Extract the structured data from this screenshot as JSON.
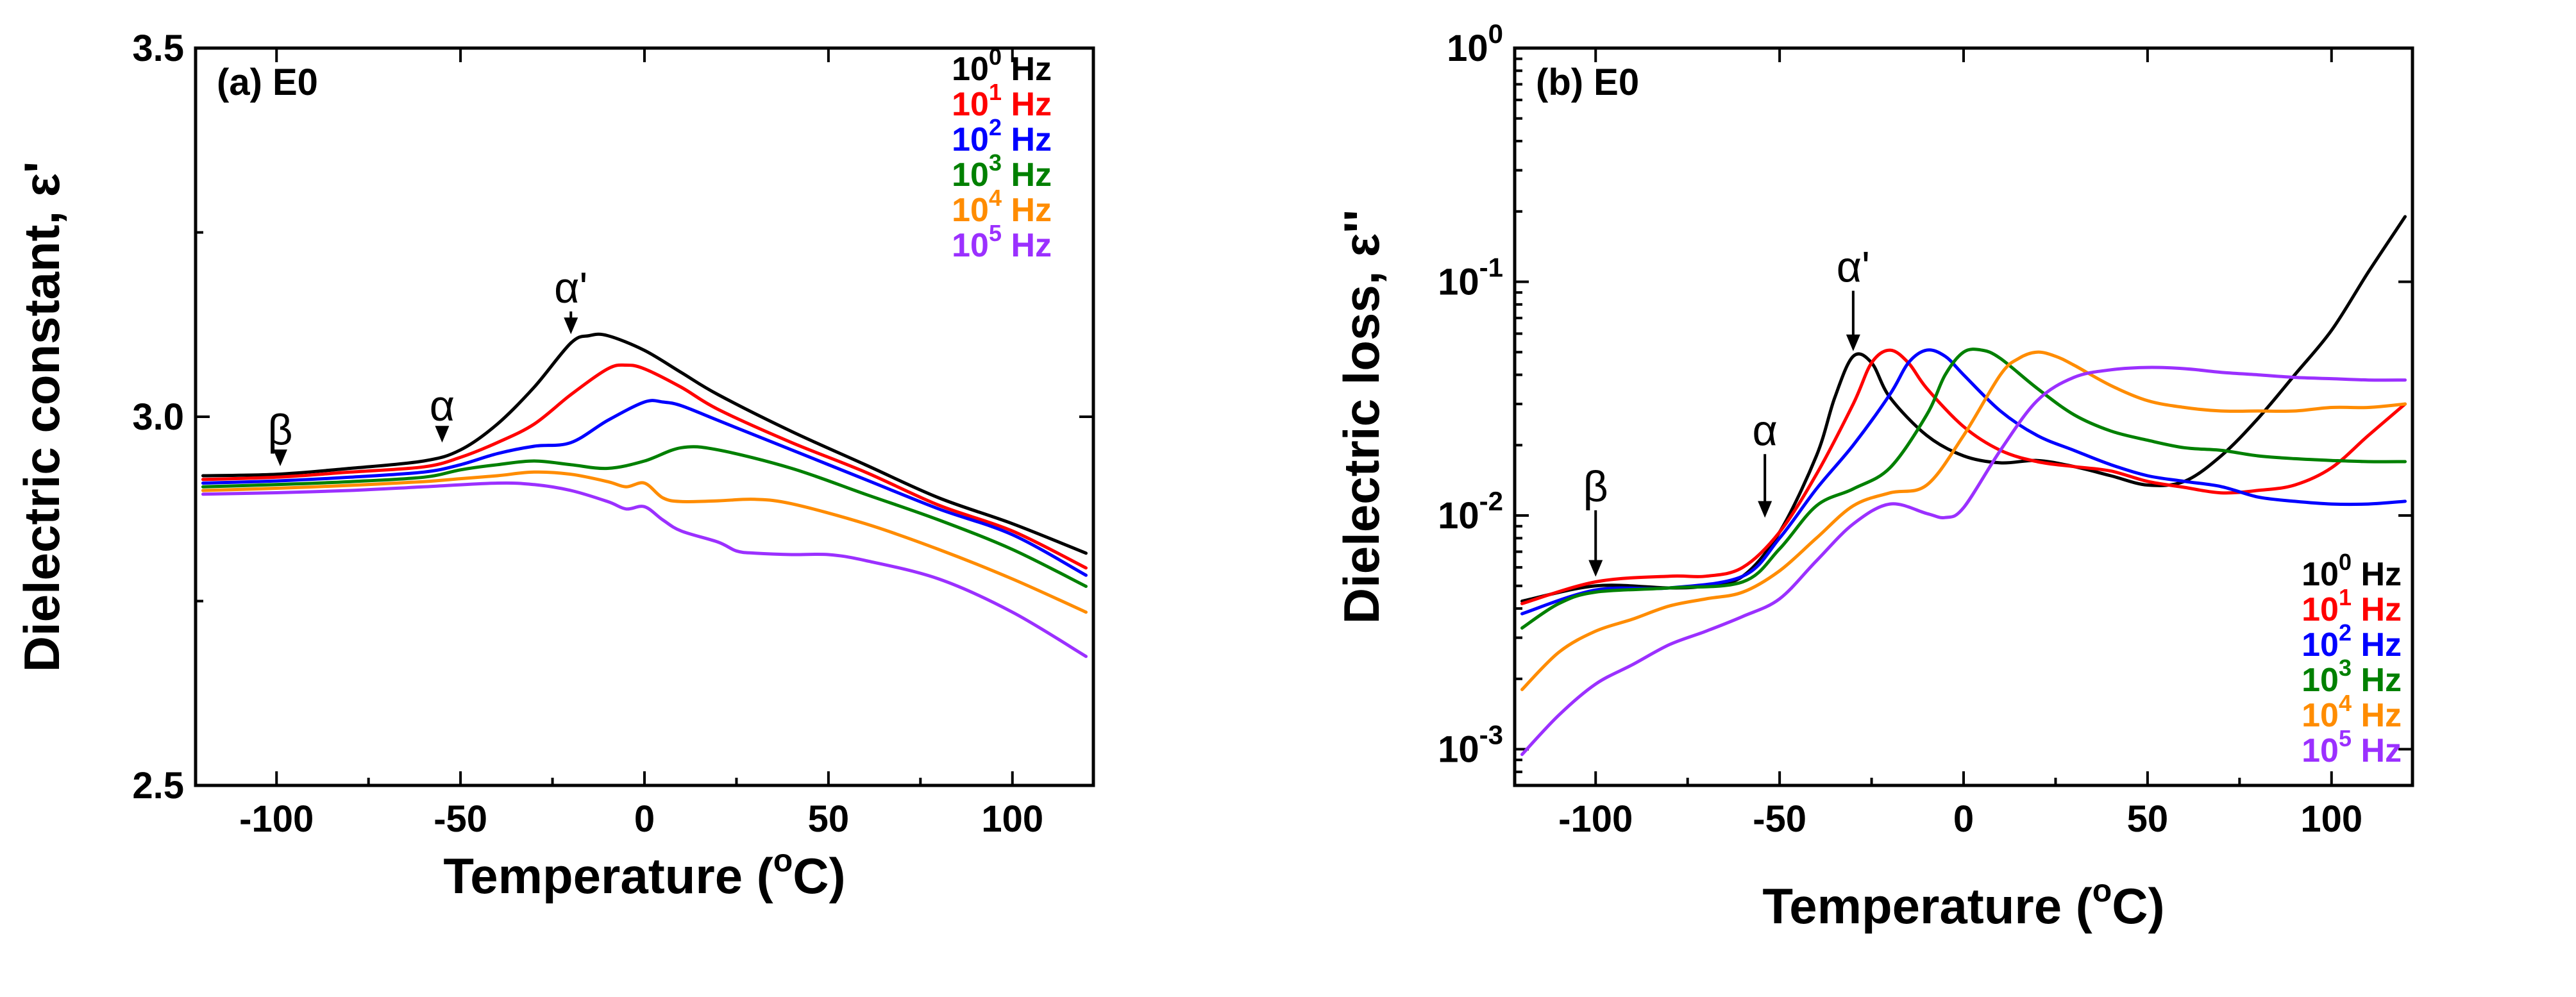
{
  "chart_data": [
    {
      "type": "line",
      "panel_label": "(a) E0",
      "xlabel": "Temperature (",
      "xlabel_sup": "o",
      "xlabel_tail": "C)",
      "ylabel": "Dielectric constant, ε'",
      "xlim": [
        -122,
        122
      ],
      "ylim": [
        2.5,
        3.5
      ],
      "yscale": "linear",
      "xticks": [
        -100,
        -50,
        0,
        50,
        100
      ],
      "xtick_labels": [
        "-100",
        "-50",
        "0",
        "50",
        "100"
      ],
      "yticks": [
        2.5,
        3.0,
        3.5
      ],
      "ytick_labels": [
        "2.5",
        "3.0",
        "3.5"
      ],
      "legend_position": "top-right",
      "annotations": [
        {
          "text": "β",
          "x": -99,
          "y": 2.926,
          "label_y": 2.962
        },
        {
          "text": "α",
          "x": -55,
          "y": 2.958,
          "label_y": 2.995
        },
        {
          "text": "α'",
          "x": -20,
          "y": 3.105,
          "label_y": 3.155
        }
      ],
      "series": [
        {
          "name_base": "10",
          "name_exp": "0",
          "name_unit": " Hz",
          "color": "#000000",
          "x": [
            -120,
            -100,
            -80,
            -60,
            -50,
            -40,
            -30,
            -20,
            -15,
            -10,
            0,
            10,
            20,
            40,
            60,
            80,
            100,
            120
          ],
          "y": [
            2.92,
            2.922,
            2.93,
            2.94,
            2.955,
            2.99,
            3.04,
            3.1,
            3.11,
            3.11,
            3.09,
            3.06,
            3.03,
            2.98,
            2.935,
            2.89,
            2.855,
            2.815
          ]
        },
        {
          "name_base": "10",
          "name_exp": "1",
          "name_unit": " Hz",
          "color": "#ff0000",
          "x": [
            -120,
            -100,
            -80,
            -60,
            -50,
            -40,
            -30,
            -20,
            -10,
            -5,
            0,
            10,
            20,
            40,
            60,
            80,
            100,
            120
          ],
          "y": [
            2.915,
            2.918,
            2.925,
            2.932,
            2.945,
            2.965,
            2.99,
            3.03,
            3.065,
            3.07,
            3.065,
            3.04,
            3.01,
            2.965,
            2.925,
            2.88,
            2.845,
            2.795
          ]
        },
        {
          "name_base": "10",
          "name_exp": "2",
          "name_unit": " Hz",
          "color": "#0000ff",
          "x": [
            -120,
            -100,
            -80,
            -60,
            -50,
            -40,
            -30,
            -20,
            -10,
            0,
            5,
            10,
            20,
            40,
            60,
            80,
            100,
            120
          ],
          "y": [
            2.91,
            2.913,
            2.918,
            2.925,
            2.935,
            2.95,
            2.96,
            2.965,
            2.995,
            3.02,
            3.02,
            3.015,
            2.995,
            2.955,
            2.915,
            2.875,
            2.84,
            2.785
          ]
        },
        {
          "name_base": "10",
          "name_exp": "3",
          "name_unit": " Hz",
          "color": "#008000",
          "x": [
            -120,
            -100,
            -80,
            -60,
            -50,
            -40,
            -30,
            -20,
            -10,
            0,
            10,
            20,
            40,
            60,
            80,
            100,
            120
          ],
          "y": [
            2.905,
            2.908,
            2.912,
            2.918,
            2.928,
            2.935,
            2.94,
            2.935,
            2.93,
            2.94,
            2.958,
            2.955,
            2.93,
            2.895,
            2.86,
            2.82,
            2.77
          ]
        },
        {
          "name_base": "10",
          "name_exp": "4",
          "name_unit": " Hz",
          "color": "#ff8c00",
          "x": [
            -120,
            -100,
            -80,
            -60,
            -50,
            -40,
            -30,
            -20,
            -10,
            -5,
            0,
            5,
            10,
            20,
            30,
            40,
            60,
            80,
            100,
            120
          ],
          "y": [
            2.9,
            2.903,
            2.907,
            2.912,
            2.916,
            2.92,
            2.925,
            2.922,
            2.912,
            2.905,
            2.91,
            2.89,
            2.885,
            2.886,
            2.888,
            2.882,
            2.855,
            2.82,
            2.78,
            2.735
          ]
        },
        {
          "name_base": "10",
          "name_exp": "5",
          "name_unit": " Hz",
          "color": "#9b30ff",
          "x": [
            -120,
            -100,
            -80,
            -60,
            -40,
            -30,
            -20,
            -10,
            -5,
            0,
            5,
            10,
            20,
            25,
            30,
            40,
            50,
            60,
            80,
            100,
            120
          ],
          "y": [
            2.895,
            2.897,
            2.9,
            2.905,
            2.91,
            2.908,
            2.9,
            2.885,
            2.875,
            2.878,
            2.86,
            2.845,
            2.83,
            2.818,
            2.815,
            2.813,
            2.813,
            2.805,
            2.78,
            2.735,
            2.675
          ]
        }
      ]
    },
    {
      "type": "line",
      "panel_label": "(b) E0",
      "xlabel": "Temperature (",
      "xlabel_sup": "o",
      "xlabel_tail": "C)",
      "ylabel": "Dielectric loss, ε''",
      "xlim": [
        -122,
        122
      ],
      "ylim": [
        0.0007,
        1
      ],
      "yscale": "log",
      "xticks": [
        -100,
        -50,
        0,
        50,
        100
      ],
      "xtick_labels": [
        "-100",
        "-50",
        "0",
        "50",
        "100"
      ],
      "yticks": [
        0.001,
        0.01,
        0.1,
        1
      ],
      "ytick_labels": [
        {
          "base": "10",
          "exp": "-3"
        },
        {
          "base": "10",
          "exp": "-2"
        },
        {
          "base": "10",
          "exp": "-1"
        },
        {
          "base": "10",
          "exp": "0"
        }
      ],
      "legend_position": "bottom-right",
      "annotations": [
        {
          "text": "β",
          "x": -100,
          "y": 0.0052,
          "label_y": 0.0115
        },
        {
          "text": "α",
          "x": -54,
          "y": 0.0093,
          "label_y": 0.02
        },
        {
          "text": "α'",
          "x": -30,
          "y": 0.048,
          "label_y": 0.1
        }
      ],
      "series": [
        {
          "name_base": "10",
          "name_exp": "0",
          "name_unit": " Hz",
          "color": "#000000",
          "x": [
            -120,
            -100,
            -80,
            -70,
            -60,
            -50,
            -40,
            -35,
            -30,
            -25,
            -20,
            -10,
            0,
            10,
            20,
            30,
            40,
            50,
            60,
            70,
            80,
            90,
            100,
            110,
            120
          ],
          "y": [
            0.0043,
            0.005,
            0.0049,
            0.005,
            0.0055,
            0.0085,
            0.018,
            0.032,
            0.048,
            0.045,
            0.032,
            0.022,
            0.018,
            0.0168,
            0.0172,
            0.0162,
            0.0148,
            0.0135,
            0.014,
            0.018,
            0.026,
            0.04,
            0.062,
            0.11,
            0.19
          ]
        },
        {
          "name_base": "10",
          "name_exp": "1",
          "name_unit": " Hz",
          "color": "#ff0000",
          "x": [
            -120,
            -100,
            -80,
            -70,
            -60,
            -50,
            -40,
            -30,
            -25,
            -20,
            -15,
            -10,
            0,
            10,
            20,
            30,
            40,
            50,
            60,
            70,
            80,
            90,
            100,
            110,
            120
          ],
          "y": [
            0.0042,
            0.0052,
            0.0055,
            0.0055,
            0.006,
            0.0085,
            0.015,
            0.03,
            0.045,
            0.051,
            0.045,
            0.035,
            0.024,
            0.019,
            0.017,
            0.0162,
            0.0155,
            0.014,
            0.0132,
            0.0125,
            0.0128,
            0.0135,
            0.016,
            0.022,
            0.03
          ]
        },
        {
          "name_base": "10",
          "name_exp": "2",
          "name_unit": " Hz",
          "color": "#0000ff",
          "x": [
            -120,
            -100,
            -80,
            -60,
            -50,
            -40,
            -30,
            -20,
            -15,
            -10,
            -5,
            0,
            10,
            20,
            30,
            40,
            50,
            60,
            70,
            80,
            90,
            100,
            110,
            120
          ],
          "y": [
            0.0038,
            0.0048,
            0.0049,
            0.0055,
            0.008,
            0.013,
            0.02,
            0.033,
            0.045,
            0.051,
            0.048,
            0.04,
            0.028,
            0.022,
            0.019,
            0.0165,
            0.0148,
            0.014,
            0.0133,
            0.012,
            0.0115,
            0.0112,
            0.0112,
            0.0115
          ]
        },
        {
          "name_base": "10",
          "name_exp": "3",
          "name_unit": " Hz",
          "color": "#008000",
          "x": [
            -120,
            -110,
            -100,
            -80,
            -60,
            -50,
            -40,
            -30,
            -20,
            -10,
            -5,
            0,
            5,
            10,
            20,
            30,
            40,
            50,
            60,
            70,
            80,
            90,
            100,
            110,
            120
          ],
          "y": [
            0.0033,
            0.0042,
            0.0047,
            0.0049,
            0.0052,
            0.0072,
            0.011,
            0.013,
            0.016,
            0.027,
            0.04,
            0.05,
            0.051,
            0.047,
            0.035,
            0.027,
            0.023,
            0.021,
            0.0195,
            0.019,
            0.018,
            0.0175,
            0.0172,
            0.017,
            0.017
          ]
        },
        {
          "name_base": "10",
          "name_exp": "4",
          "name_unit": " Hz",
          "color": "#ff8c00",
          "x": [
            -120,
            -110,
            -100,
            -90,
            -80,
            -70,
            -60,
            -50,
            -40,
            -30,
            -20,
            -10,
            0,
            10,
            15,
            20,
            25,
            30,
            40,
            50,
            60,
            70,
            80,
            90,
            100,
            110,
            120
          ],
          "y": [
            0.0018,
            0.0026,
            0.0032,
            0.0036,
            0.0041,
            0.0044,
            0.0047,
            0.0058,
            0.008,
            0.011,
            0.0125,
            0.0135,
            0.022,
            0.04,
            0.047,
            0.05,
            0.048,
            0.044,
            0.036,
            0.031,
            0.029,
            0.028,
            0.028,
            0.028,
            0.029,
            0.029,
            0.03
          ]
        },
        {
          "name_base": "10",
          "name_exp": "5",
          "name_unit": " Hz",
          "color": "#9b30ff",
          "x": [
            -120,
            -110,
            -100,
            -90,
            -80,
            -70,
            -60,
            -50,
            -40,
            -30,
            -20,
            -10,
            -5,
            0,
            10,
            20,
            30,
            40,
            50,
            60,
            70,
            80,
            90,
            100,
            110,
            120
          ],
          "y": [
            0.00095,
            0.0014,
            0.0019,
            0.0023,
            0.0028,
            0.0032,
            0.0037,
            0.0044,
            0.0064,
            0.0092,
            0.0112,
            0.0102,
            0.0098,
            0.0108,
            0.019,
            0.031,
            0.039,
            0.042,
            0.043,
            0.0425,
            0.041,
            0.04,
            0.039,
            0.0385,
            0.038,
            0.038
          ]
        }
      ]
    }
  ]
}
